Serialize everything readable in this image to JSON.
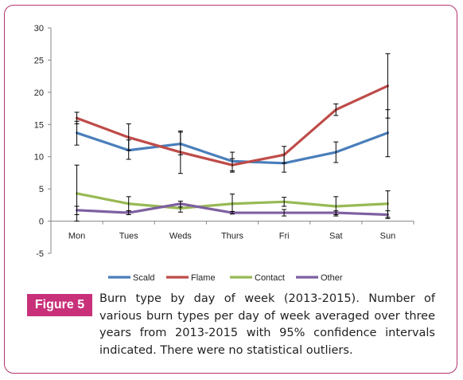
{
  "chart_data": {
    "type": "line",
    "categories": [
      "Mon",
      "Tues",
      "Weds",
      "Thurs",
      "Fri",
      "Sat",
      "Sun"
    ],
    "ylim": [
      -5,
      30
    ],
    "yticks": [
      -5,
      0,
      5,
      10,
      15,
      20,
      25,
      30
    ],
    "grid": false,
    "legend": "bottom",
    "series": [
      {
        "name": "Scald",
        "color": "#4a7ebb",
        "values": [
          13.7,
          11.0,
          12.0,
          9.3,
          9.0,
          10.7,
          13.7
        ],
        "ci_low": [
          11.8,
          9.6,
          10.3,
          7.8,
          7.6,
          9.1,
          10.0
        ],
        "ci_high": [
          15.5,
          12.6,
          13.8,
          10.7,
          10.4,
          12.3,
          17.3
        ]
      },
      {
        "name": "Flame",
        "color": "#be4b48",
        "values": [
          16.0,
          13.0,
          10.7,
          8.7,
          10.3,
          17.3,
          21.0
        ],
        "ci_low": [
          15.1,
          11.0,
          7.4,
          7.6,
          9.0,
          16.4,
          16.0
        ],
        "ci_high": [
          16.9,
          15.1,
          14.0,
          9.7,
          11.6,
          18.2,
          26.0
        ]
      },
      {
        "name": "Contact",
        "color": "#98b954",
        "values": [
          4.3,
          2.7,
          2.0,
          2.7,
          3.0,
          2.3,
          2.7
        ],
        "ci_low": [
          0.0,
          1.6,
          1.4,
          1.2,
          2.3,
          0.8,
          0.6
        ],
        "ci_high": [
          8.7,
          3.8,
          2.6,
          4.2,
          3.7,
          3.8,
          4.7
        ]
      },
      {
        "name": "Other",
        "color": "#7d60a0",
        "values": [
          1.7,
          1.3,
          2.7,
          1.3,
          1.3,
          1.3,
          1.0
        ],
        "ci_low": [
          1.0,
          1.0,
          2.2,
          1.1,
          0.8,
          1.0,
          0.4
        ],
        "ci_high": [
          2.3,
          1.6,
          3.1,
          1.5,
          1.8,
          1.6,
          1.6
        ]
      }
    ]
  },
  "figure": {
    "label": "Figure 5",
    "caption": "Burn type by day of week (2013-2015). Number of various burn types per day of week averaged over three years from 2013-2015 with 95% confidence intervals indicated. There were no statistical outliers."
  }
}
